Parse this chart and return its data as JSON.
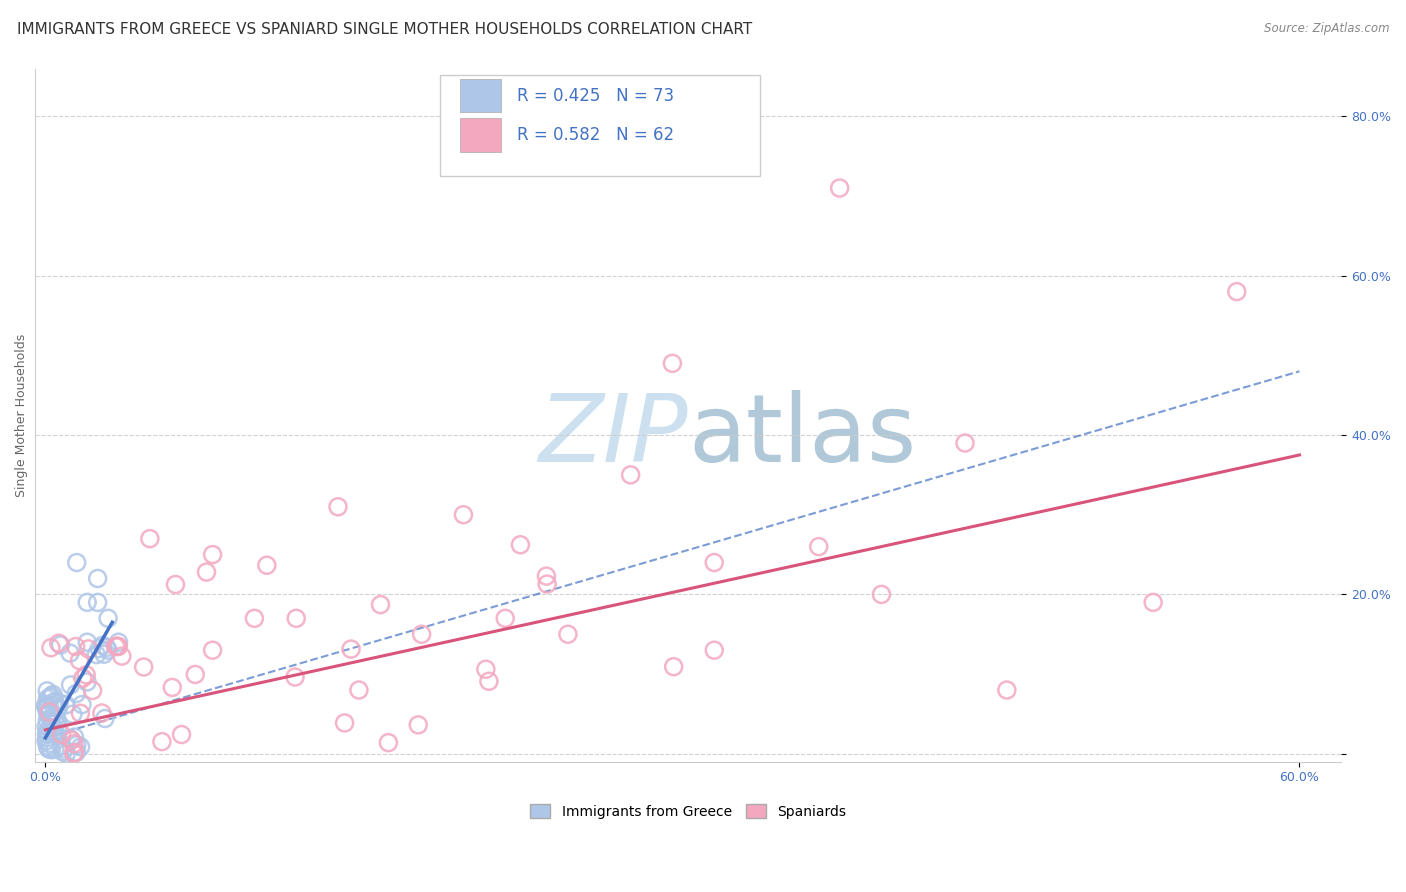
{
  "title": "IMMIGRANTS FROM GREECE VS SPANIARD SINGLE MOTHER HOUSEHOLDS CORRELATION CHART",
  "source": "Source: ZipAtlas.com",
  "ylabel": "Single Mother Households",
  "legend_r1": "R = 0.425",
  "legend_n1": "N = 73",
  "legend_r2": "R = 0.582",
  "legend_n2": "N = 62",
  "greece_color": "#aec6e8",
  "spaniard_color": "#f4a8c0",
  "greece_line_color": "#4472c4",
  "spaniard_line_color": "#d9547a",
  "background_color": "#ffffff",
  "grid_color": "#cccccc",
  "watermark_color": "#cce0f0",
  "title_fontsize": 11,
  "tick_fontsize": 9,
  "legend_fontsize": 12
}
